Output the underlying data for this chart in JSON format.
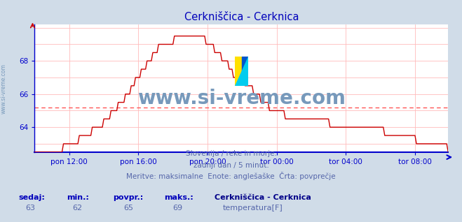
{
  "title": "Cerkniščica - Cerknica",
  "title_color": "#0000bb",
  "bg_color": "#d0dce8",
  "plot_bg_color": "#ffffff",
  "grid_color": "#ffbbbb",
  "axis_color": "#0000cc",
  "line_color": "#cc0000",
  "avg_line_color": "#ff5555",
  "avg_value": 65.2,
  "ylim_min": 62.5,
  "ylim_max": 70.2,
  "yticks": [
    64,
    66,
    68
  ],
  "xlabel_ticks": [
    "pon 12:00",
    "pon 16:00",
    "pon 20:00",
    "tor 00:00",
    "tor 04:00",
    "tor 08:00"
  ],
  "watermark": "www.si-vreme.com",
  "watermark_color": "#7799bb",
  "side_label": "www.si-vreme.com",
  "side_label_color": "#7799bb",
  "footer_line1": "Slovenija / reke in morje.",
  "footer_line2": "zadnji dan / 5 minut.",
  "footer_line3": "Meritve: maksimalne  Enote: anglešaške  Črta: povprečje",
  "footer_color": "#5566aa",
  "stat_label_color": "#0000bb",
  "stat_value_color": "#5566aa",
  "sedaj": 63,
  "min_val": 62,
  "povpr_val": 65,
  "maks_val": 69,
  "legend_series": "Cerkniščica - Cerknica",
  "legend_unit": "temperatura[F]",
  "legend_color": "#cc0000",
  "icon_yellow": "#FFE000",
  "icon_blue": "#0055CC",
  "icon_cyan": "#00CCEE"
}
